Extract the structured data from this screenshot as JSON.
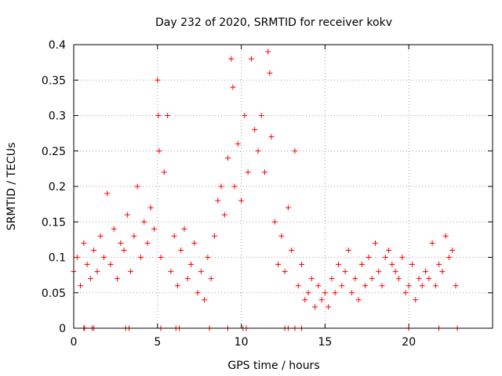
{
  "chart_data": {
    "type": "scatter",
    "title": "Day 232 of 2020, SRMTID for receiver kokv",
    "xlabel": "GPS time / hours",
    "ylabel": "SRMTID / TECUs",
    "xlim": [
      0,
      25
    ],
    "ylim": [
      0,
      0.4
    ],
    "grid": true,
    "x_ticks": [
      0,
      5,
      10,
      15,
      20
    ],
    "x_tick_labels": [
      "0",
      "5",
      "10",
      "15",
      "20"
    ],
    "y_ticks": [
      0,
      0.05,
      0.1,
      0.15,
      0.2,
      0.25,
      0.3,
      0.35,
      0.4
    ],
    "y_tick_labels": [
      "0",
      "0.05",
      "0.1",
      "0.15",
      "0.2",
      "0.25",
      "0.3",
      "0.35",
      "0.4"
    ],
    "marker": "plus",
    "color": "#ff0000",
    "series": [
      {
        "name": "SRMTID",
        "x": [
          0.0,
          0.2,
          0.4,
          0.6,
          0.8,
          1.0,
          1.2,
          1.4,
          1.6,
          1.8,
          2.0,
          2.2,
          2.4,
          2.6,
          2.8,
          3.0,
          3.2,
          3.4,
          3.6,
          3.8,
          4.0,
          4.2,
          4.4,
          4.6,
          4.8,
          5.0,
          5.05,
          5.1,
          5.2,
          5.4,
          5.6,
          5.8,
          6.0,
          6.2,
          6.4,
          6.6,
          6.8,
          7.0,
          7.2,
          7.4,
          7.6,
          7.8,
          8.0,
          8.2,
          8.4,
          8.6,
          8.8,
          9.0,
          9.2,
          9.4,
          9.5,
          9.6,
          9.8,
          10.0,
          10.2,
          10.4,
          10.6,
          10.8,
          11.0,
          11.2,
          11.4,
          11.6,
          11.7,
          11.8,
          12.0,
          12.2,
          12.4,
          12.6,
          12.8,
          13.0,
          13.2,
          13.4,
          13.6,
          13.8,
          14.0,
          14.2,
          14.4,
          14.6,
          14.8,
          15.0,
          15.2,
          15.4,
          15.6,
          15.8,
          16.0,
          16.2,
          16.4,
          16.6,
          16.8,
          17.0,
          17.2,
          17.4,
          17.6,
          17.8,
          18.0,
          18.2,
          18.4,
          18.6,
          18.8,
          19.0,
          19.2,
          19.4,
          19.6,
          19.8,
          20.0,
          20.2,
          20.4,
          20.6,
          20.8,
          21.0,
          21.2,
          21.4,
          21.6,
          21.8,
          22.0,
          22.2,
          22.4,
          22.6,
          22.8
        ],
        "y": [
          0.08,
          0.1,
          0.06,
          0.12,
          0.09,
          0.07,
          0.11,
          0.08,
          0.13,
          0.1,
          0.19,
          0.09,
          0.14,
          0.07,
          0.12,
          0.11,
          0.16,
          0.08,
          0.13,
          0.2,
          0.1,
          0.15,
          0.12,
          0.17,
          0.14,
          0.35,
          0.3,
          0.25,
          0.1,
          0.22,
          0.3,
          0.08,
          0.13,
          0.06,
          0.11,
          0.14,
          0.07,
          0.09,
          0.12,
          0.05,
          0.08,
          0.04,
          0.1,
          0.07,
          0.13,
          0.18,
          0.2,
          0.16,
          0.24,
          0.38,
          0.34,
          0.2,
          0.26,
          0.18,
          0.3,
          0.22,
          0.38,
          0.28,
          0.25,
          0.3,
          0.22,
          0.39,
          0.36,
          0.27,
          0.15,
          0.09,
          0.13,
          0.08,
          0.17,
          0.11,
          0.25,
          0.06,
          0.09,
          0.04,
          0.05,
          0.07,
          0.03,
          0.06,
          0.04,
          0.05,
          0.03,
          0.07,
          0.05,
          0.09,
          0.06,
          0.08,
          0.11,
          0.05,
          0.07,
          0.04,
          0.09,
          0.06,
          0.1,
          0.07,
          0.12,
          0.08,
          0.06,
          0.1,
          0.11,
          0.09,
          0.08,
          0.07,
          0.1,
          0.05,
          0.06,
          0.09,
          0.04,
          0.07,
          0.06,
          0.08,
          0.07,
          0.12,
          0.06,
          0.09,
          0.08,
          0.13,
          0.1,
          0.11,
          0.06
        ]
      }
    ],
    "zero_markers_x": [
      0.6,
      0.65,
      1.1,
      1.2,
      3.1,
      3.3,
      5.2,
      6.1,
      6.3,
      8.1,
      9.2,
      10.1,
      10.3,
      12.6,
      12.8,
      13.2,
      13.6,
      20.0,
      21.8,
      22.9
    ]
  }
}
